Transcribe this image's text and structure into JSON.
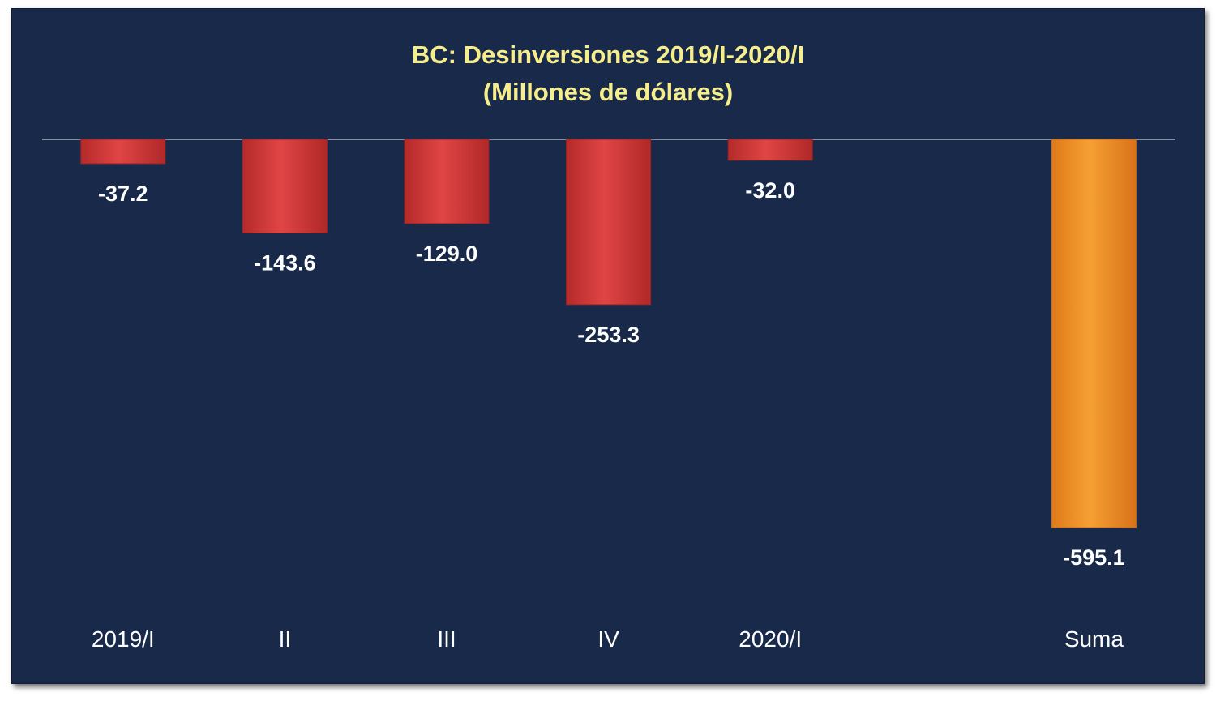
{
  "chart_data": {
    "type": "bar",
    "title": "BC: Desinversiones 2019/I-2020/I",
    "subtitle": "(Millones de dólares)",
    "categories": [
      "2019/I",
      "II",
      "III",
      "IV",
      "2020/I",
      "",
      "Suma"
    ],
    "values": [
      -37.2,
      -143.6,
      -129.0,
      -253.3,
      -32.0,
      null,
      -595.1
    ],
    "value_labels": [
      "-37.2",
      "-143.6",
      "-129.0",
      "-253.3",
      "-32.0",
      "",
      "-595.1"
    ],
    "bar_colors": [
      "#d63a3a",
      "#d63a3a",
      "#d63a3a",
      "#d63a3a",
      "#d63a3a",
      "",
      "#f08c22"
    ],
    "ylim": [
      -595.1,
      0
    ],
    "grid": false,
    "legend": "none"
  },
  "colors": {
    "background": "#18294a",
    "title": "#f6ee8c",
    "negative_bar": "#d63a3a",
    "total_bar": "#f08c22",
    "text": "#ffffff",
    "axis_line": "#a9b3c4"
  }
}
